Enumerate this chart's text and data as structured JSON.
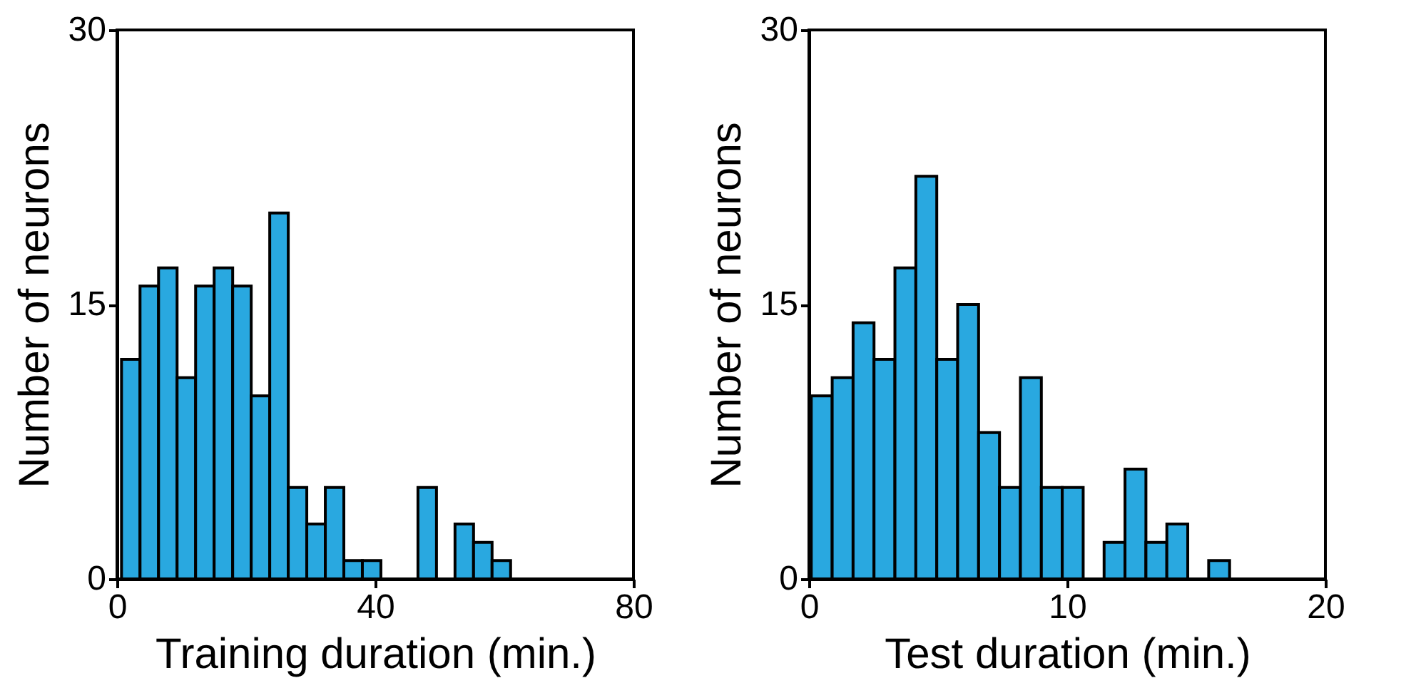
{
  "chart_data": [
    {
      "type": "histogram",
      "xlabel": "Training duration (min.)",
      "ylabel": "Number of neurons",
      "color": "#29a8e0",
      "bins": [
        0.7,
        3.57,
        6.44,
        9.31,
        12.18,
        15.05,
        17.92,
        20.79,
        23.66,
        26.53,
        29.4,
        32.27,
        35.14,
        38.01,
        40.88,
        43.75,
        46.62,
        49.49,
        52.36,
        55.23,
        58.1,
        60.97
      ],
      "values": [
        12,
        16,
        17,
        11,
        16,
        17,
        16,
        10,
        20,
        5,
        3,
        5,
        1,
        1,
        0,
        0,
        5,
        0,
        3,
        2,
        1
      ],
      "xlim": [
        0,
        80
      ],
      "xticks": [
        0,
        40,
        80
      ],
      "ylim": [
        0,
        30
      ],
      "yticks": [
        0,
        15,
        30
      ],
      "grid": false
    },
    {
      "type": "histogram",
      "xlabel": "Test duration (min.)",
      "ylabel": "Number of neurons",
      "color": "#29a8e0",
      "bins": [
        0.09,
        0.9,
        1.71,
        2.52,
        3.33,
        4.14,
        4.95,
        5.76,
        6.57,
        7.38,
        8.19,
        9.0,
        9.81,
        10.62,
        11.43,
        12.24,
        13.05,
        13.86,
        14.67,
        15.48,
        16.29
      ],
      "values": [
        10,
        11,
        14,
        12,
        17,
        22,
        12,
        15,
        8,
        5,
        11,
        5,
        5,
        0,
        2,
        6,
        2,
        3,
        0,
        1
      ],
      "xlim": [
        0,
        20
      ],
      "xticks": [
        0,
        10,
        20
      ],
      "ylim": [
        0,
        30
      ],
      "yticks": [
        0,
        15,
        30
      ],
      "grid": false
    }
  ]
}
